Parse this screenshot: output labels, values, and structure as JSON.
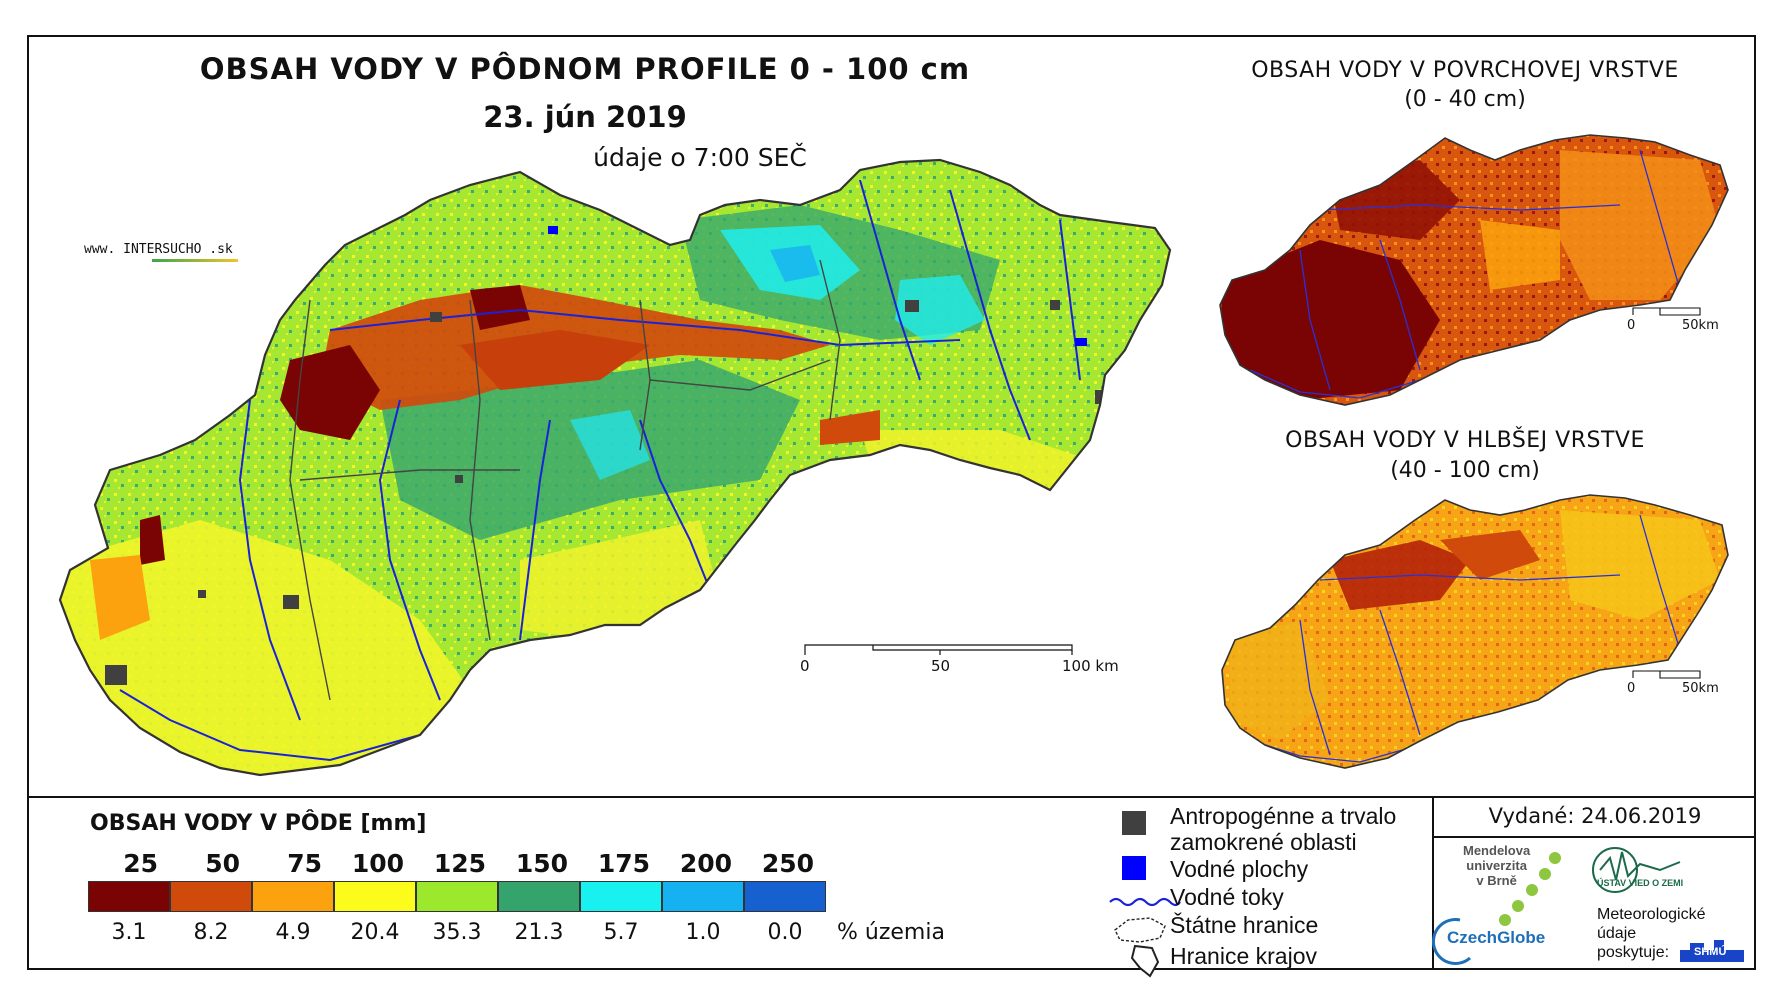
{
  "map": {
    "title": "OBSAH VODY V PÔDNOM PROFILE 0 - 100 cm",
    "date": "23. jún 2019",
    "time_note": "údaje o 7:00 SEČ",
    "brand": {
      "prefix": "www. ",
      "name1": "INTER",
      "name2": "SUCHO",
      "suffix": " .sk"
    },
    "scale": {
      "labels": [
        "0",
        "50",
        "100 km"
      ]
    }
  },
  "surface_map": {
    "title": "OBSAH VODY V POVRCHOVEJ VRSTVE",
    "subtitle": "(0 - 40 cm)",
    "scale": {
      "labels": [
        "0",
        "50km"
      ]
    }
  },
  "deep_map": {
    "title": "OBSAH VODY V HLBŠEJ VRSTVE",
    "subtitle": "(40 - 100 cm)",
    "scale": {
      "labels": [
        "0",
        "50km"
      ]
    }
  },
  "legend": {
    "title": "OBSAH VODY V PÔDE [mm]",
    "breaks": [
      "25",
      "50",
      "75",
      "100",
      "125",
      "150",
      "175",
      "200",
      "250"
    ],
    "classes": [
      {
        "color": "#7a0403",
        "percent": "3.1"
      },
      {
        "color": "#d04a0c",
        "percent": "8.2"
      },
      {
        "color": "#fca20e",
        "percent": "4.9"
      },
      {
        "color": "#fbfb1c",
        "percent": "20.4"
      },
      {
        "color": "#9be82c",
        "percent": "35.3"
      },
      {
        "color": "#35a36c",
        "percent": "21.3"
      },
      {
        "color": "#19f1f0",
        "percent": "5.7"
      },
      {
        "color": "#16b1f0",
        "percent": "1.0"
      },
      {
        "color": "#1760d0",
        "percent": "0.0"
      }
    ],
    "percent_unit": "% územia"
  },
  "symbols": [
    {
      "icon": "anthropogenic-area-icon",
      "label_line1": "Antropogénne a trvalo",
      "label_line2": "zamokrené oblasti",
      "color": "#404040"
    },
    {
      "icon": "water-body-icon",
      "label_line1": "Vodné plochy",
      "color": "#0000ff"
    },
    {
      "icon": "river-icon",
      "label_line1": "Vodné toky",
      "color": "#1a22d8"
    },
    {
      "icon": "state-border-icon",
      "label_line1": "Štátne hranice"
    },
    {
      "icon": "region-border-icon",
      "label_line1": "Hranice krajov"
    }
  ],
  "footer": {
    "issued": "Vydané: 24.06.2019",
    "mendel": [
      "Mendelova",
      "univerzita",
      "v Brně"
    ],
    "czechglobe": "CzechGlobe",
    "ustav": "ÚSTAV VIED O ZEMI",
    "meteo": [
      "Meteorologické",
      "údaje",
      "poskytuje:"
    ],
    "shmu": "SHMÚ"
  }
}
